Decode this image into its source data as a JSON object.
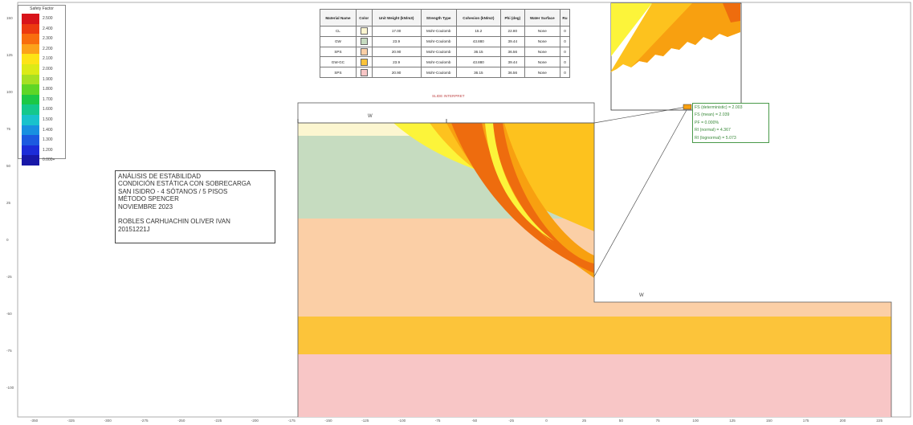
{
  "legend": {
    "title": "Safety Factor",
    "entries": [
      {
        "label": "2.500",
        "color": "#d8141a"
      },
      {
        "label": "2.400",
        "color": "#ec3a10"
      },
      {
        "label": "2.300",
        "color": "#f86d0e"
      },
      {
        "label": "2.200",
        "color": "#fca21a"
      },
      {
        "label": "2.100",
        "color": "#fde316"
      },
      {
        "label": "2.000",
        "color": "#dcea16"
      },
      {
        "label": "1.900",
        "color": "#a6e022"
      },
      {
        "label": "1.800",
        "color": "#5ed626"
      },
      {
        "label": "1.700",
        "color": "#1cc846"
      },
      {
        "label": "1.600",
        "color": "#14c88c"
      },
      {
        "label": "1.500",
        "color": "#18c2cc"
      },
      {
        "label": "1.400",
        "color": "#1890e0"
      },
      {
        "label": "1.300",
        "color": "#1c5ae0"
      },
      {
        "label": "1.200",
        "color": "#1c2cd8"
      },
      {
        "label": "0.000+",
        "color": "#1818a8"
      }
    ]
  },
  "materials_table": {
    "headers": [
      "Material Name",
      "Color",
      "Unit Weight (kN/m3)",
      "Strength Type",
      "Cohesion (kN/m2)",
      "Phi (deg)",
      "Water Surface",
      "Ru"
    ],
    "rows": [
      {
        "name": "CL",
        "color": "#fcf6d0",
        "unit_weight": "17.00",
        "strength_type": "Mohr-Coulomb",
        "cohesion": "15.2",
        "phi": "22.80",
        "water_surface": "None",
        "ru": "0"
      },
      {
        "name": "GW",
        "color": "#c6dcc0",
        "unit_weight": "23.9",
        "strength_type": "Mohr-Coulomb",
        "cohesion": "43.880",
        "phi": "39.44",
        "water_surface": "None",
        "ru": "0"
      },
      {
        "name": "SPS",
        "color": "#fbcfa6",
        "unit_weight": "20.90",
        "strength_type": "Mohr-Coulomb",
        "cohesion": "36.15",
        "phi": "36.56",
        "water_surface": "None",
        "ru": "0"
      },
      {
        "name": "GW-GC",
        "color": "#fcc43a",
        "unit_weight": "23.9",
        "strength_type": "Mohr-Coulomb",
        "cohesion": "43.880",
        "phi": "39.44",
        "water_surface": "None",
        "ru": "0"
      },
      {
        "name": "SPS",
        "color": "#f8c6c6",
        "unit_weight": "20.90",
        "strength_type": "Mohr-Coulomb",
        "cohesion": "36.15",
        "phi": "36.56",
        "water_surface": "None",
        "ru": "0"
      }
    ],
    "caption": "SLIDE INTERPRET"
  },
  "info_box": {
    "lines": [
      "Análisis de Estabilidad",
      "Condición Estática con Sobrecarga",
      "San Isidro - 4 Sótanos / 5 Pisos",
      "Método Spencer",
      "Noviembre 2023",
      "",
      "Robles Carhuachin Oliver Ivan",
      "20151221J"
    ]
  },
  "fs_readout": {
    "lines": [
      "FS (deterministic) = 2.003",
      "FS (mean) = 2.039",
      "PF = 0.000%",
      "RI (normal) = 4.367",
      "RI (lognormal) = 5.073"
    ]
  },
  "point_labels": {
    "top": "W",
    "bottom": "W"
  },
  "axes": {
    "x_ticks": [
      "-350",
      "-325",
      "-300",
      "-275",
      "-250",
      "-225",
      "-200",
      "-175",
      "-150",
      "-125",
      "-100",
      "-75",
      "-50",
      "-25",
      "0",
      "25",
      "50",
      "75",
      "100",
      "125",
      "150",
      "175",
      "200",
      "225",
      "250"
    ],
    "y_ticks": [
      "150",
      "125",
      "100",
      "75",
      "50",
      "25",
      "0",
      "-25",
      "-50",
      "-75",
      "-100"
    ]
  },
  "colors": {
    "cl": "#fcf6d0",
    "gw": "#c6dcc0",
    "sps": "#fbcfa6",
    "gwgc": "#fcc43a",
    "sps_bottom": "#f8c6c6",
    "slip_yellow": "#fcf43a",
    "slip_light_orange": "#fdc21e",
    "slip_orange": "#f8a010",
    "slip_dark_orange": "#ee6c0e"
  }
}
